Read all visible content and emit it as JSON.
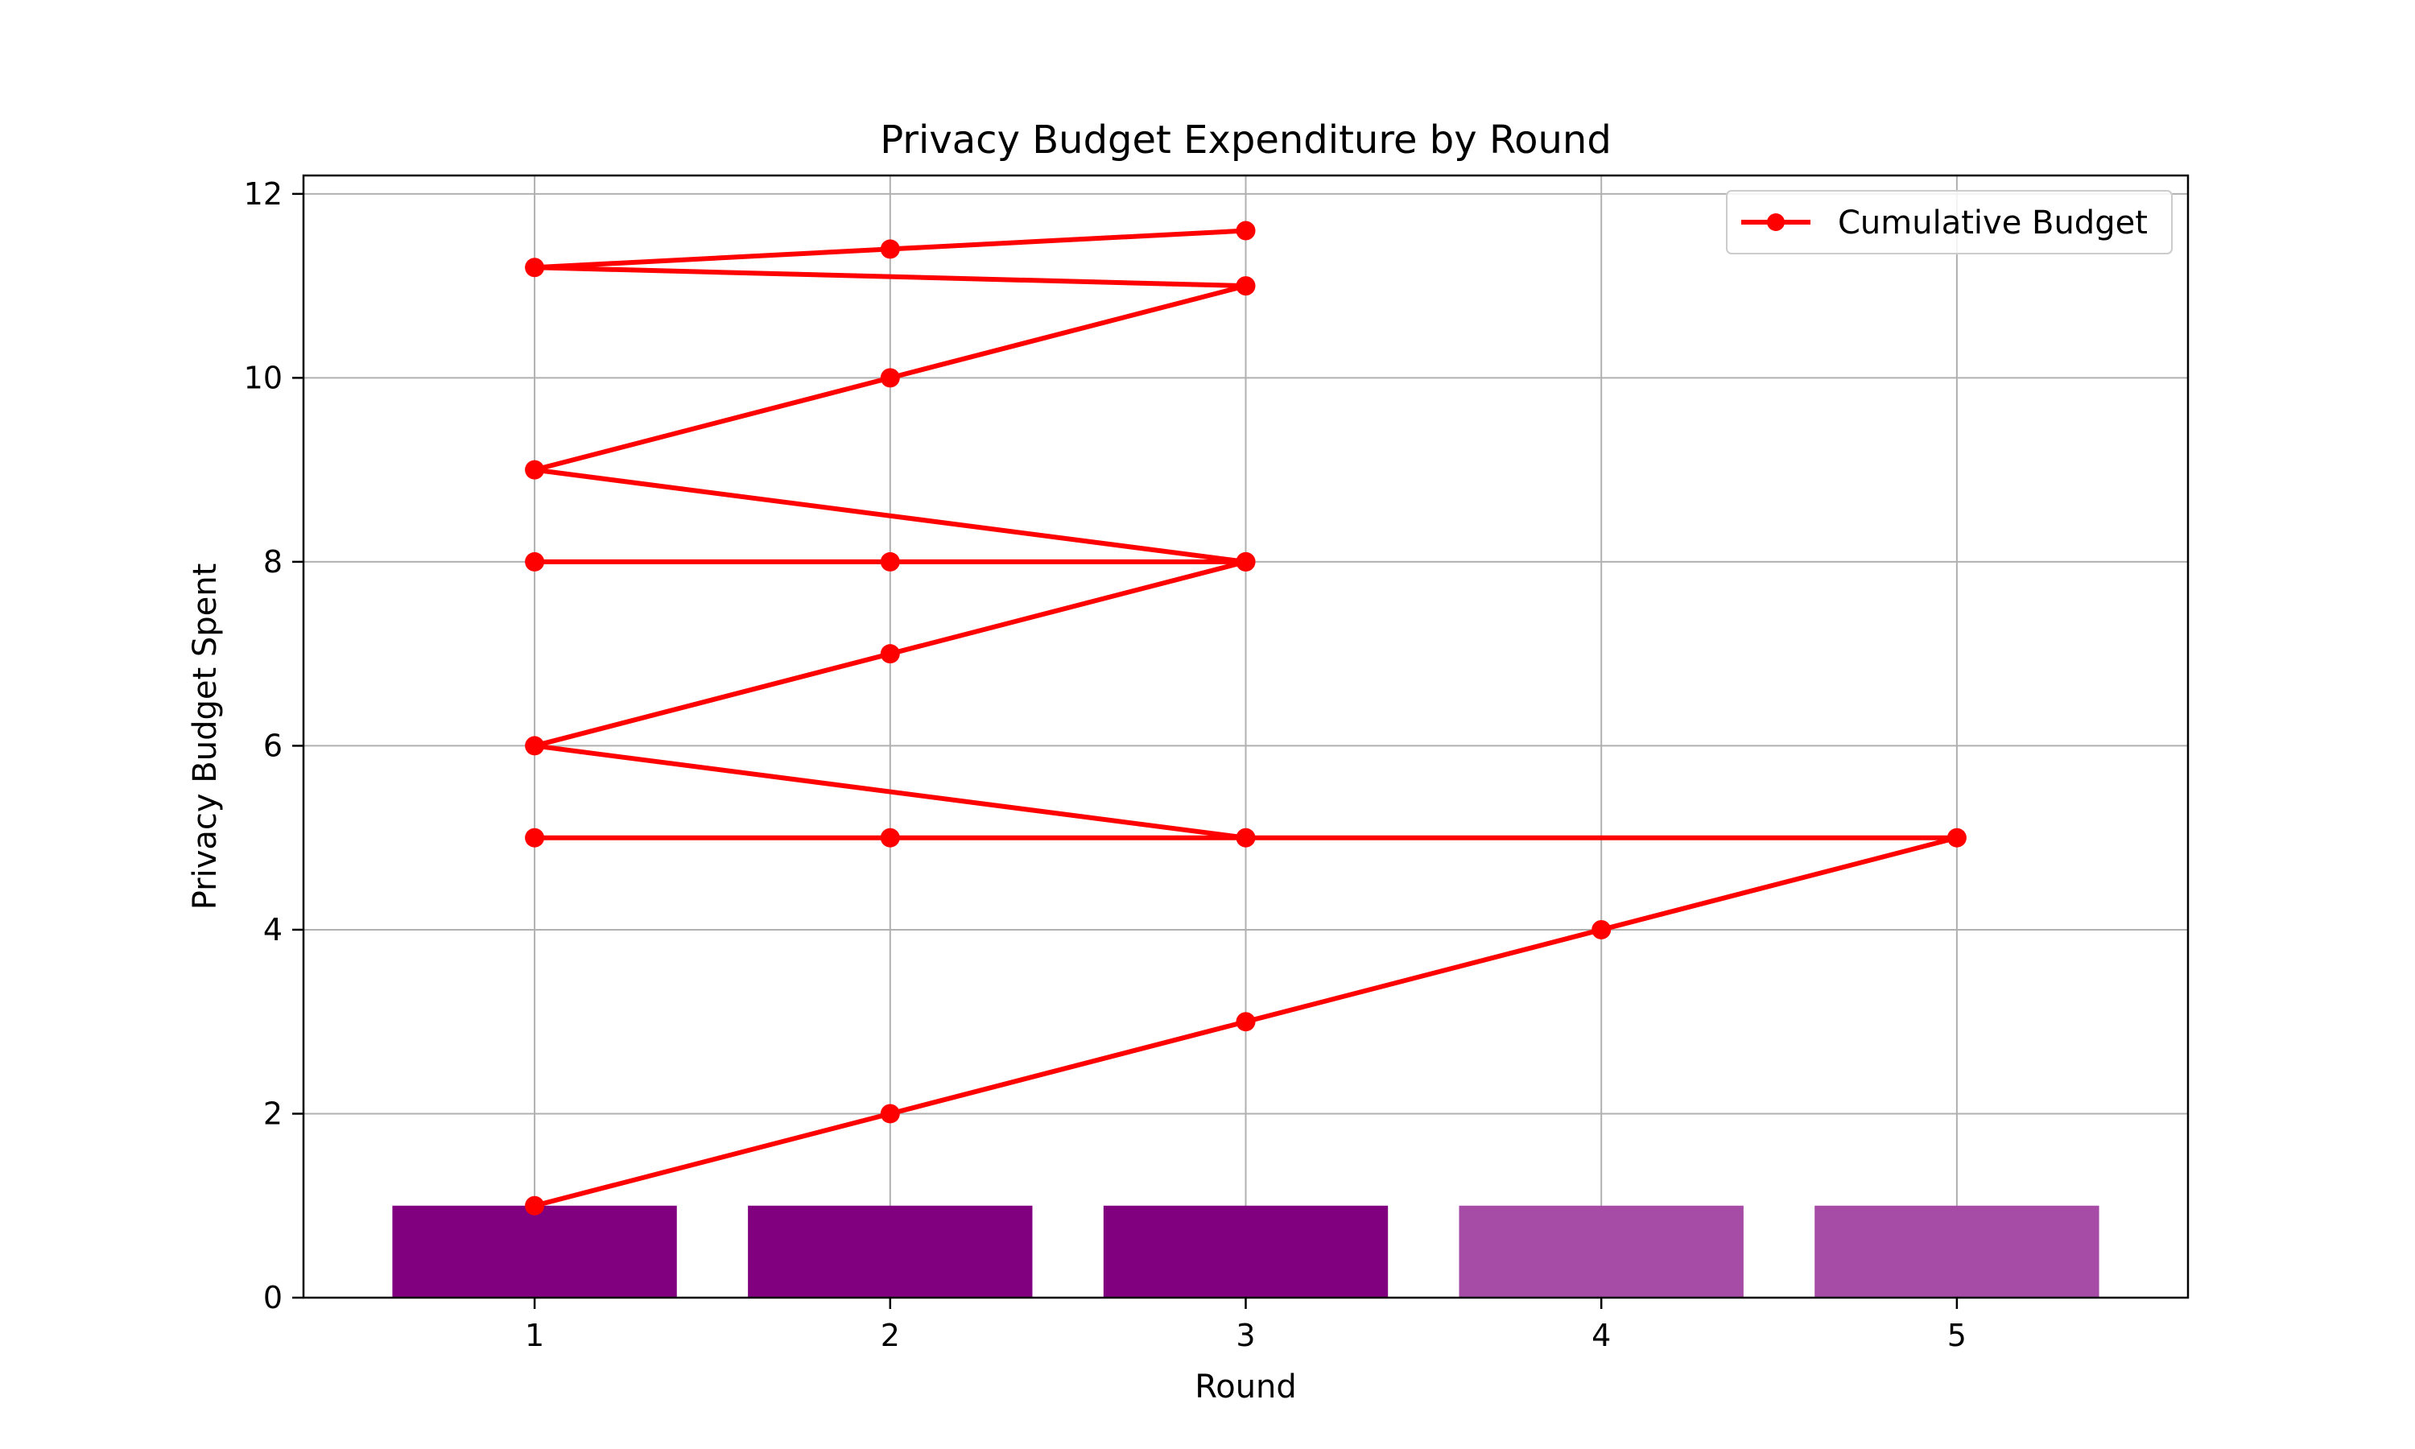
{
  "chart_data": {
    "type": "bar",
    "title": "Privacy Budget Expenditure by Round",
    "xlabel": "Round",
    "ylabel": "Privacy Budget Spent",
    "xlim": [
      0.35,
      5.65
    ],
    "ylim": [
      0,
      12.2
    ],
    "xticks": [
      1,
      2,
      3,
      4,
      5
    ],
    "yticks": [
      0,
      2,
      4,
      6,
      8,
      10,
      12
    ],
    "grid": true,
    "legend_position": "upper right",
    "bars": {
      "categories": [
        1,
        2,
        3,
        4,
        5
      ],
      "values": [
        1,
        1,
        1,
        1,
        1
      ],
      "colors": [
        "#800080",
        "#800080",
        "#800080",
        "#a64ca6",
        "#a64ca6"
      ]
    },
    "series": [
      {
        "name": "Cumulative Budget",
        "type": "line",
        "color": "#ff0000",
        "marker": "circle",
        "x": [
          1,
          2,
          3,
          4,
          5,
          1,
          2,
          3,
          1,
          2,
          3,
          1,
          2,
          3,
          1,
          2,
          3,
          1,
          2,
          3
        ],
        "y": [
          1,
          2,
          3,
          4,
          5,
          5,
          5,
          5,
          6,
          7,
          8,
          8,
          8,
          8,
          9,
          10,
          11,
          11.2,
          11.4,
          11.6
        ]
      }
    ]
  }
}
